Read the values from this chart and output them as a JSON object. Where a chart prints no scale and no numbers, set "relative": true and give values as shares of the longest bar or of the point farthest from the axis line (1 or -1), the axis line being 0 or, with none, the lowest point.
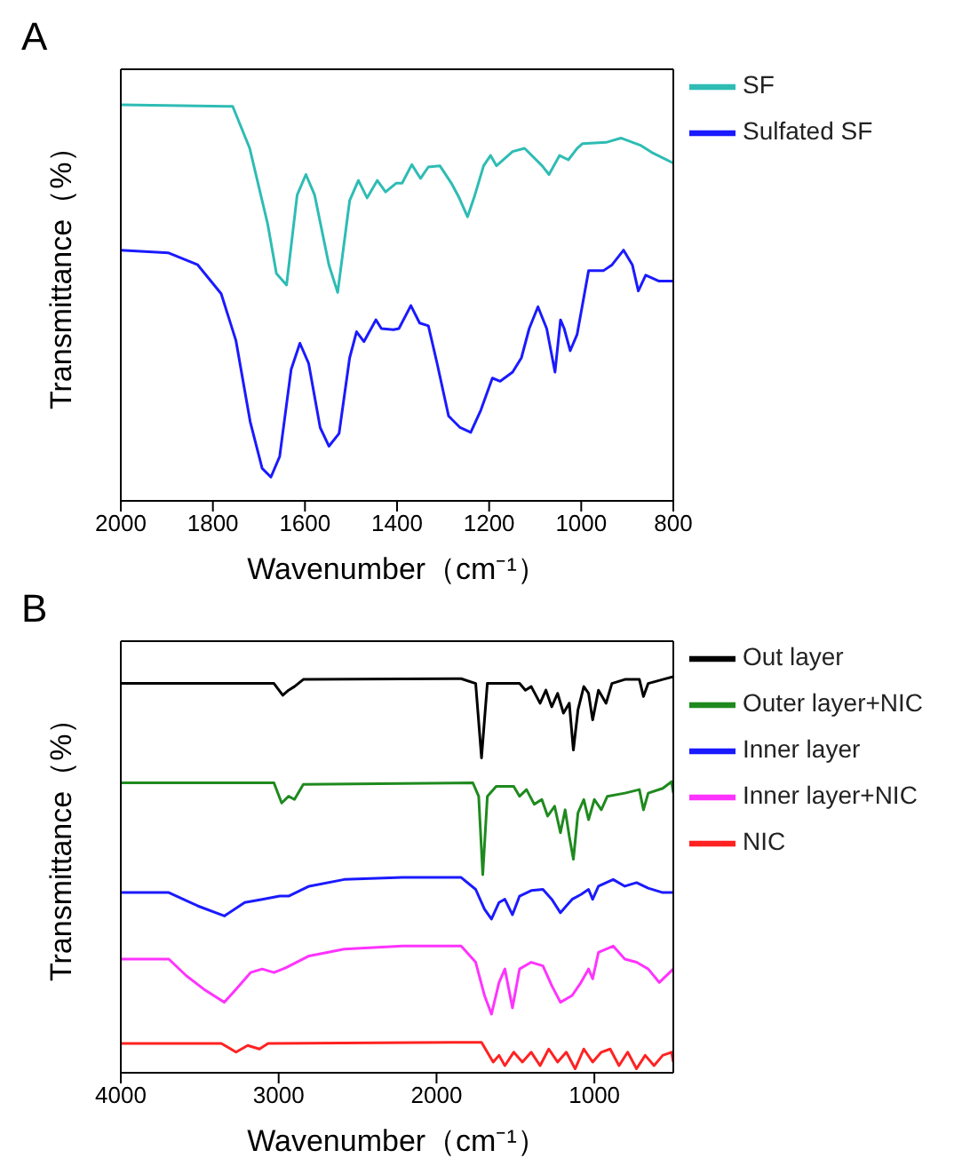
{
  "chart_data": [
    {
      "type": "line",
      "title": "A",
      "xlabel": "Wavenumber（cm⁻¹）",
      "ylabel": "Transmittance（%）",
      "relative": true,
      "xlim": [
        2000,
        800
      ],
      "xticks": [
        2000,
        1800,
        1600,
        1400,
        1200,
        1000,
        800
      ],
      "legend": "right",
      "line_style": "solid",
      "series": [
        {
          "name": "SF",
          "color": "#2ebcb4",
          "x": [
            2000,
            1757,
            1720,
            1681,
            1662,
            1640,
            1617,
            1598,
            1579,
            1548,
            1529,
            1503,
            1484,
            1465,
            1443,
            1425,
            1402,
            1389,
            1368,
            1349,
            1332,
            1307,
            1282,
            1265,
            1247,
            1231,
            1212,
            1197,
            1184,
            1149,
            1123,
            1085,
            1070,
            1047,
            1028,
            1009,
            997,
            946,
            914,
            870,
            844,
            800
          ],
          "values": [
            1.0,
            0.996,
            0.89,
            0.699,
            0.574,
            0.545,
            0.772,
            0.824,
            0.772,
            0.596,
            0.526,
            0.758,
            0.809,
            0.765,
            0.809,
            0.78,
            0.802,
            0.802,
            0.849,
            0.814,
            0.843,
            0.846,
            0.802,
            0.765,
            0.717,
            0.772,
            0.846,
            0.872,
            0.846,
            0.882,
            0.89,
            0.846,
            0.824,
            0.872,
            0.861,
            0.89,
            0.902,
            0.905,
            0.916,
            0.897,
            0.878,
            0.853
          ]
        },
        {
          "name": "Sulfated SF",
          "color": "#1a1aff",
          "x": [
            2000,
            1896,
            1833,
            1782,
            1750,
            1719,
            1693,
            1674,
            1655,
            1630,
            1611,
            1592,
            1567,
            1548,
            1526,
            1503,
            1488,
            1472,
            1446,
            1434,
            1408,
            1396,
            1370,
            1351,
            1332,
            1313,
            1288,
            1263,
            1240,
            1218,
            1193,
            1176,
            1149,
            1130,
            1113,
            1094,
            1075,
            1057,
            1045,
            1037,
            1024,
            1009,
            984,
            952,
            933,
            908,
            889,
            876,
            860,
            832,
            800
          ],
          "values": [
            0.633,
            0.626,
            0.596,
            0.523,
            0.405,
            0.2,
            0.082,
            0.06,
            0.112,
            0.332,
            0.398,
            0.347,
            0.185,
            0.138,
            0.17,
            0.361,
            0.427,
            0.402,
            0.457,
            0.435,
            0.432,
            0.435,
            0.493,
            0.449,
            0.442,
            0.347,
            0.214,
            0.185,
            0.173,
            0.229,
            0.31,
            0.302,
            0.325,
            0.361,
            0.435,
            0.49,
            0.435,
            0.325,
            0.457,
            0.435,
            0.379,
            0.42,
            0.581,
            0.581,
            0.596,
            0.633,
            0.596,
            0.53,
            0.57,
            0.555,
            0.555
          ]
        }
      ]
    },
    {
      "type": "line",
      "title": "B",
      "xlabel": "Wavenumber（cm⁻¹）",
      "ylabel": "Transmittance（%）",
      "relative": true,
      "xlim": [
        4000,
        500
      ],
      "xticks": [
        4000,
        3000,
        2000,
        1000
      ],
      "legend": "right",
      "line_style": "solid",
      "series": [
        {
          "name": "Out layer",
          "color": "#000000",
          "x": [
            4000,
            3030,
            2974,
            2937,
            2900,
            2844,
            1844,
            1752,
            1715,
            1678,
            1474,
            1437,
            1400,
            1344,
            1307,
            1270,
            1233,
            1196,
            1159,
            1133,
            1104,
            1067,
            1037,
            1011,
            974,
            926,
            889,
            807,
            715,
            689,
            659,
            567,
            500
          ],
          "values": [
            0.983,
            0.983,
            0.953,
            0.966,
            0.975,
            0.993,
            0.995,
            0.983,
            0.795,
            0.983,
            0.983,
            0.966,
            0.975,
            0.933,
            0.966,
            0.924,
            0.958,
            0.908,
            0.933,
            0.815,
            0.916,
            0.975,
            0.958,
            0.891,
            0.966,
            0.933,
            0.983,
            0.993,
            0.993,
            0.95,
            0.983,
            0.993,
            1.0
          ]
        },
        {
          "name": "Outer layer+NIC",
          "color": "#1e8a1e",
          "x": [
            4000,
            3030,
            2981,
            2937,
            2900,
            2844,
            1770,
            1733,
            1707,
            1678,
            1622,
            1511,
            1474,
            1430,
            1381,
            1333,
            1296,
            1252,
            1215,
            1185,
            1159,
            1133,
            1104,
            1067,
            1037,
            1000,
            956,
            918,
            807,
            715,
            689,
            659,
            567,
            511,
            500
          ],
          "values": [
            0.732,
            0.732,
            0.681,
            0.698,
            0.69,
            0.728,
            0.732,
            0.698,
            0.5,
            0.698,
            0.723,
            0.723,
            0.698,
            0.715,
            0.678,
            0.69,
            0.648,
            0.673,
            0.606,
            0.664,
            0.597,
            0.539,
            0.656,
            0.69,
            0.639,
            0.69,
            0.664,
            0.698,
            0.706,
            0.715,
            0.664,
            0.706,
            0.718,
            0.735,
            0.706
          ]
        },
        {
          "name": "Inner layer",
          "color": "#1a1aff",
          "x": [
            4000,
            3696,
            3511,
            3344,
            3215,
            3104,
            2993,
            2937,
            2807,
            2585,
            2215,
            1844,
            1752,
            1696,
            1652,
            1604,
            1567,
            1519,
            1474,
            1400,
            1326,
            1270,
            1215,
            1141,
            1085,
            1037,
            1011,
            974,
            881,
            807,
            733,
            659,
            567,
            500
          ],
          "values": [
            0.455,
            0.455,
            0.421,
            0.396,
            0.43,
            0.438,
            0.446,
            0.446,
            0.471,
            0.488,
            0.493,
            0.493,
            0.463,
            0.413,
            0.388,
            0.43,
            0.438,
            0.399,
            0.446,
            0.46,
            0.463,
            0.438,
            0.404,
            0.438,
            0.45,
            0.463,
            0.438,
            0.471,
            0.488,
            0.471,
            0.48,
            0.466,
            0.455,
            0.455
          ]
        },
        {
          "name": "Inner layer+NIC",
          "color": "#ff33ff",
          "x": [
            4000,
            3696,
            3585,
            3474,
            3344,
            3270,
            3178,
            3104,
            3030,
            2956,
            2807,
            2585,
            2215,
            1844,
            1752,
            1696,
            1652,
            1604,
            1567,
            1519,
            1474,
            1400,
            1326,
            1270,
            1215,
            1141,
            1085,
            1037,
            1011,
            974,
            881,
            807,
            733,
            659,
            589,
            500
          ],
          "values": [
            0.287,
            0.287,
            0.245,
            0.211,
            0.178,
            0.211,
            0.253,
            0.262,
            0.253,
            0.265,
            0.295,
            0.312,
            0.32,
            0.32,
            0.279,
            0.195,
            0.148,
            0.228,
            0.262,
            0.164,
            0.262,
            0.279,
            0.27,
            0.22,
            0.178,
            0.195,
            0.228,
            0.262,
            0.237,
            0.304,
            0.32,
            0.287,
            0.279,
            0.262,
            0.228,
            0.262
          ]
        },
        {
          "name": "NIC",
          "color": "#ff2222",
          "x": [
            4000,
            3363,
            3270,
            3196,
            3122,
            3067,
            1844,
            1715,
            1641,
            1604,
            1567,
            1511,
            1456,
            1400,
            1344,
            1289,
            1233,
            1178,
            1122,
            1067,
            1011,
            956,
            900,
            844,
            789,
            733,
            678,
            622,
            567,
            511,
            500
          ],
          "values": [
            0.074,
            0.074,
            0.052,
            0.069,
            0.06,
            0.074,
            0.077,
            0.077,
            0.027,
            0.044,
            0.018,
            0.052,
            0.027,
            0.052,
            0.018,
            0.06,
            0.027,
            0.052,
            0.01,
            0.06,
            0.027,
            0.052,
            0.06,
            0.018,
            0.052,
            0.01,
            0.044,
            0.018,
            0.044,
            0.052,
            0.027
          ]
        }
      ]
    }
  ]
}
